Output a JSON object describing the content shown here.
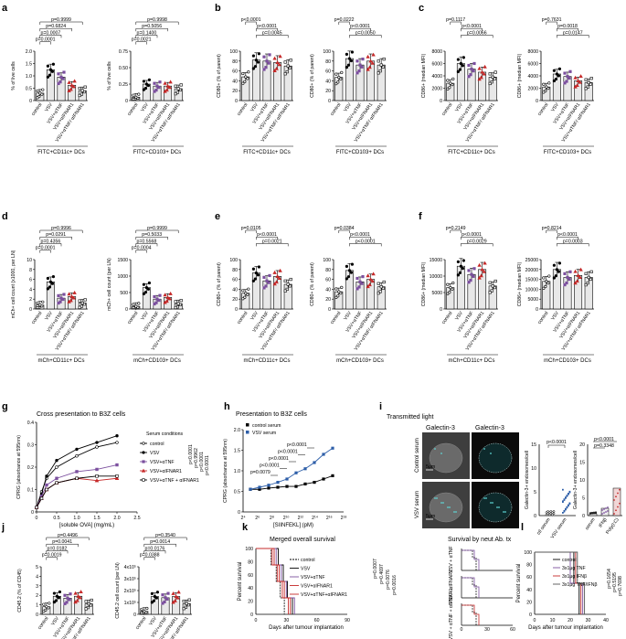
{
  "figure": {
    "panel_letters": [
      "a",
      "b",
      "c",
      "d",
      "e",
      "f",
      "g",
      "h",
      "i",
      "j",
      "k",
      "l"
    ],
    "colors": {
      "vsv": "#000000",
      "vsv_tnf": "#7b4f9e",
      "vsv_ifnar1": "#c62828",
      "vsv_tnf_ifnar1": "#000000",
      "bar": "#e8e8e8",
      "galectin": "#5fd6d6"
    },
    "group_labels": [
      "control",
      "VSV",
      "VSV+αTNF",
      "VSV+αIFNAR1",
      "VSV+αTNF/αIFNAR1"
    ],
    "groups_short": [
      "control",
      "VSV",
      "VSV+αTNF",
      "VSV+αIFNAR1",
      "VSV+αTNF/ αIFNAR1"
    ]
  },
  "chart_data": [
    {
      "id": "a1",
      "type": "bar",
      "ylabel": "% of live cells",
      "ylim": [
        0,
        2
      ],
      "yticks": [
        "0",
        "0.5",
        "1.0",
        "1.5",
        "2.0"
      ],
      "xlabel": "FITC+CD11c+ DCs",
      "values": [
        0.3,
        1.25,
        0.95,
        0.62,
        0.4
      ],
      "pvalues": [
        "p=0.9999",
        "p=0.6824",
        "p=0.0007",
        "p=0.0001"
      ]
    },
    {
      "id": "a2",
      "type": "bar",
      "ylabel": "% of live cells",
      "ylim": [
        0,
        0.75
      ],
      "yticks": [
        "0",
        "0.25",
        "0.50",
        "0.75"
      ],
      "xlabel": "FITC+CD103+ DCs",
      "values": [
        0.05,
        0.25,
        0.22,
        0.22,
        0.18
      ],
      "pvalues": [
        "p=0.9998",
        "p=0.5056",
        "p=0.1400",
        "p=0.0021"
      ]
    },
    {
      "id": "b1",
      "type": "bar",
      "ylabel": "CD80+ (% of parent)",
      "ylim": [
        0,
        100
      ],
      "yticks": [
        "0",
        "20",
        "40",
        "60",
        "80",
        "100"
      ],
      "xlabel": "FITC+CD11c+ DCs",
      "values": [
        48,
        82,
        80,
        77,
        70
      ],
      "pvalues": [
        "p<0.0001",
        "p<0.0001",
        "p=0.0045"
      ]
    },
    {
      "id": "b2",
      "type": "bar",
      "ylabel": "CD80+ (% of parent)",
      "ylim": [
        0,
        100
      ],
      "yticks": [
        "0",
        "20",
        "40",
        "60",
        "80",
        "100"
      ],
      "xlabel": "FITC+CD103+ DCs",
      "values": [
        47,
        85,
        72,
        80,
        72
      ],
      "pvalues": [
        "p=0.0222",
        "p<0.0001",
        "p=0.0050"
      ]
    },
    {
      "id": "c1",
      "type": "bar",
      "ylabel": "CD86+ (median MFI)",
      "ylim": [
        0,
        8000
      ],
      "yticks": [
        "0",
        "2000",
        "4000",
        "6000",
        "8000"
      ],
      "xlabel": "FITC+CD11c+ DCs",
      "values": [
        2800,
        6000,
        5100,
        4600,
        3800
      ],
      "pvalues": [
        "p=0.1117",
        "p<0.0001",
        "p=0.0066"
      ]
    },
    {
      "id": "c2",
      "type": "bar",
      "ylabel": "CD86+ (median MFI)",
      "ylim": [
        0,
        8000
      ],
      "yticks": [
        "0",
        "2000",
        "4000",
        "6000",
        "8000"
      ],
      "xlabel": "FITC+CD103+ DCs",
      "values": [
        2200,
        4300,
        3900,
        3200,
        2900
      ],
      "pvalues": [
        "p=0.7631",
        "p=0.0018",
        "p=0.0147"
      ]
    },
    {
      "id": "d1",
      "type": "bar",
      "ylabel": "mCh+ cell count (x1000, per LN)",
      "ylim": [
        0,
        10
      ],
      "yticks": [
        "0",
        "2",
        "4",
        "6",
        "8",
        "10"
      ],
      "xlabel": "mCh+CD11c+ DCs",
      "values": [
        0.8,
        5.5,
        2.2,
        2.5,
        1.2
      ],
      "pvalues": [
        "p=0.9996",
        "p=0.0291",
        "p=0.4356",
        "p=0.0001"
      ]
    },
    {
      "id": "d2",
      "type": "bar",
      "ylabel": "mCh+ cell count (per LN)",
      "ylim": [
        0,
        1500
      ],
      "yticks": [
        "0",
        "500",
        "1000",
        "1500"
      ],
      "xlabel": "mCh+CD103+ DCs",
      "values": [
        80,
        650,
        300,
        350,
        160
      ],
      "pvalues": [
        "p=0.9999",
        "p=0.5033",
        "p=0.5568",
        "p=0.0004"
      ]
    },
    {
      "id": "e1",
      "type": "bar",
      "ylabel": "CD80+ (% of parent)",
      "ylim": [
        0,
        100
      ],
      "yticks": [
        "0",
        "20",
        "40",
        "60",
        "80",
        "100"
      ],
      "xlabel": "mCh+CD11c+ DCs",
      "values": [
        32,
        73,
        57,
        66,
        50
      ],
      "pvalues": [
        "p=0.0105",
        "p<0.0001",
        "p=0.0021"
      ]
    },
    {
      "id": "e2",
      "type": "bar",
      "ylabel": "CD80+ (% of parent)",
      "ylim": [
        0,
        100
      ],
      "yticks": [
        "0",
        "20",
        "40",
        "60",
        "80",
        "100"
      ],
      "xlabel": "mCh+CD103+ DCs",
      "values": [
        35,
        78,
        55,
        60,
        45
      ],
      "pvalues": [
        "p=0.0384",
        "p<0.0001",
        "p<0.0001"
      ]
    },
    {
      "id": "f1",
      "type": "bar",
      "ylabel": "CD86+ (median MFI)",
      "ylim": [
        0,
        15000
      ],
      "yticks": [
        "0",
        "5000",
        "10000",
        "15000"
      ],
      "xlabel": "mCh+CD11c+ DCs",
      "values": [
        6500,
        13000,
        10500,
        12000,
        7000
      ],
      "pvalues": [
        "p=0.2149",
        "p<0.0001",
        "p=0.0029"
      ]
    },
    {
      "id": "f2",
      "type": "bar",
      "ylabel": "CD86+ (median MFI)",
      "ylim": [
        0,
        25000
      ],
      "yticks": [
        "0",
        "5000",
        "10000",
        "15000",
        "20000",
        "25000"
      ],
      "xlabel": "mCh+CD103+ DCs",
      "values": [
        14000,
        20000,
        16000,
        17000,
        16000
      ],
      "pvalues": [
        "p=0.8214",
        "p<0.0001",
        "p=0.0003"
      ]
    },
    {
      "id": "j1",
      "type": "bar",
      "ylabel": "CD45.2 (% of CD45)",
      "ylim": [
        0,
        5
      ],
      "yticks": [
        "0",
        "1",
        "2",
        "3",
        "4",
        "5"
      ],
      "xlabel": "",
      "values": [
        0.8,
        1.9,
        1.7,
        1.9,
        1.1
      ],
      "pvalues": [
        "p=0.4496",
        "p=0.0041",
        "p=0.0182",
        "p=0.0019"
      ]
    },
    {
      "id": "j2",
      "type": "bar",
      "ylabel": "CD45.2 cell count (per LN)",
      "ylim": [
        0,
        400000.0
      ],
      "yticks": [
        "0",
        "1x10⁵",
        "2x10⁵",
        "3x10⁵",
        "4x10⁵"
      ],
      "xlabel": "",
      "values": [
        25000,
        150000,
        140000,
        150000,
        90000
      ],
      "pvalues": [
        "p=0.3540",
        "p=0.0014",
        "p=0.0176",
        "p=0.0388"
      ]
    }
  ],
  "panel_g": {
    "title": "Cross presentation to B3Z cells",
    "ylabel": "CPRG (absorbance at 595nm)",
    "xlabel": "[soluble OVA] (mg/mL)",
    "xticks": [
      "0",
      "0.5",
      "1.0",
      "1.5",
      "2.0",
      "2.5"
    ],
    "yticks": [
      "0",
      "0.1",
      "0.2",
      "0.3",
      "0.4"
    ],
    "legend_title": "Serum conditions",
    "legend": [
      "control",
      "VSV",
      "VSV+αTNF",
      "VSV+αIFNAR1",
      "VSV+αTNF + αIFNAR1"
    ],
    "pvalues": [
      "p<0.0001",
      "p=0.9962",
      "p<0.0001",
      "p<0.0001"
    ]
  },
  "panel_h": {
    "title": "Presentation to B3Z cells",
    "ylabel": "CPRG (absorbance at 595nm)",
    "xlabel": "[SIINFEKL] (pM)",
    "legend": [
      "control serum",
      "VSV serum"
    ],
    "yticks": [
      "0",
      "0.5",
      "1.0",
      "1.5",
      "2.0"
    ],
    "xticks": [
      "2⁴",
      "2⁶",
      "2⁸",
      "2¹⁰",
      "2¹²",
      "2¹⁴",
      "2¹⁶",
      "2¹⁸"
    ],
    "pvalues": [
      "p=0.0079",
      "p<0.0001",
      "p<0.0001",
      "p<0.0001",
      "p<0.0001"
    ]
  },
  "panel_i": {
    "header_left": "Transmitted light",
    "header_channel": "Galectin-3",
    "row_labels": [
      "Control serum",
      "VSV serum"
    ],
    "scale": "5μm",
    "chart1": {
      "ylabel": "Galectin-3+ endosomes/cell",
      "categories": [
        "ctl serum",
        "VSV serum"
      ],
      "yticks": [
        "0",
        "5",
        "10",
        "15"
      ],
      "pvalue": "p<0.0001"
    },
    "chart2": {
      "ylabel": "Galectin-3+ endosomes/cell",
      "categories": [
        "serum",
        "IFNβ",
        "Poly(I:C)"
      ],
      "yticks": [
        "0",
        "5",
        "10",
        "15",
        "20"
      ],
      "pvalues": [
        "p<0.0001",
        "p=0.3348"
      ]
    }
  },
  "panel_k": {
    "title_left": "Merged overall survival",
    "title_right": "Survival by neut Ab. tx",
    "ylabel": "Percent survival",
    "xlabel": "Days after tumour implantation",
    "yticks": [
      "0",
      "20",
      "40",
      "60",
      "80",
      "100"
    ],
    "xticks": [
      "0",
      "30",
      "60",
      "90"
    ],
    "xticks_small": [
      "0",
      "30",
      "60"
    ],
    "legend": [
      "control",
      "VSV",
      "VSV+αTNF",
      "VSV+αIFNAR1",
      "VSV+αTNF+αIFNAR1"
    ],
    "pvalues": [
      "p=0.0007",
      "p=0.4697",
      "p=0.0076",
      "p=0.0016"
    ],
    "side_labels": [
      "VSV + αTNF",
      "VSV + αIFNAR1",
      "VSV + αTNF + αIFNAR1"
    ]
  },
  "panel_l": {
    "ylabel": "Percent survival",
    "xlabel": "Days after tumour implantation",
    "yticks": [
      "0",
      "20",
      "40",
      "60",
      "80",
      "100"
    ],
    "xticks": [
      "0",
      "10",
      "20",
      "30",
      "40"
    ],
    "legend": [
      "control",
      "3x1μg TNF",
      "3x1μg IFNβ",
      "3x1μg TNF/IFNβ"
    ],
    "pvalues": [
      "p=0.1654",
      "p=0.5195",
      "p=0.7698"
    ]
  }
}
